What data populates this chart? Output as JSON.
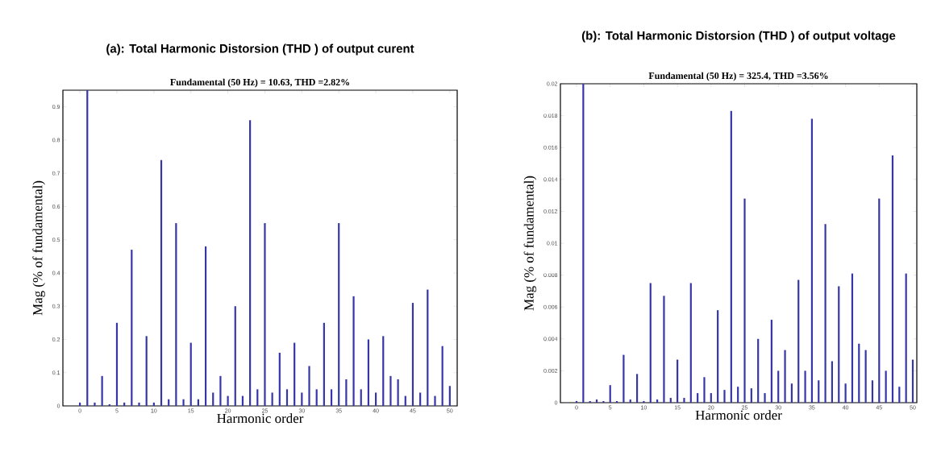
{
  "chart_data": [
    {
      "type": "bar",
      "title": "(a):  Total Harmonic Distorsion (THD ) of output curent",
      "subtitle": "Fundamental (50 Hz) = 10.63, THD =2.82%",
      "xlabel": "Harmonic order",
      "ylabel": "Mag (% of fundamental)",
      "color": "#3636a8",
      "x": [
        0,
        1,
        2,
        3,
        4,
        5,
        6,
        7,
        8,
        9,
        10,
        11,
        12,
        13,
        14,
        15,
        16,
        17,
        18,
        19,
        20,
        21,
        22,
        23,
        24,
        25,
        26,
        27,
        28,
        29,
        30,
        31,
        32,
        33,
        34,
        35,
        36,
        37,
        38,
        39,
        40,
        41,
        42,
        43,
        44,
        45,
        46,
        47,
        48,
        49,
        50
      ],
      "values": [
        0.01,
        0.95,
        0.01,
        0.09,
        0.005,
        0.25,
        0.01,
        0.47,
        0.01,
        0.21,
        0.01,
        0.74,
        0.02,
        0.55,
        0.02,
        0.19,
        0.02,
        0.48,
        0.04,
        0.09,
        0.03,
        0.3,
        0.03,
        0.86,
        0.05,
        0.55,
        0.04,
        0.16,
        0.05,
        0.19,
        0.04,
        0.12,
        0.05,
        0.25,
        0.05,
        0.55,
        0.08,
        0.33,
        0.05,
        0.2,
        0.04,
        0.21,
        0.09,
        0.08,
        0.03,
        0.31,
        0.04,
        0.35,
        0.03,
        0.18,
        0.06
      ],
      "xlim": [
        -2.3,
        51
      ],
      "ylim": [
        0,
        0.95
      ],
      "xticks": [
        0,
        5,
        10,
        15,
        20,
        25,
        30,
        35,
        40,
        45,
        50
      ],
      "yticks": [
        0,
        0.1,
        0.2,
        0.3,
        0.4,
        0.5,
        0.6,
        0.7,
        0.8,
        0.9
      ]
    },
    {
      "type": "bar",
      "title": "(b):  Total Harmonic Distorsion (THD ) of output voltage",
      "subtitle": "Fundamental (50 Hz) = 325.4, THD =3.56%",
      "xlabel": "Harmonic order",
      "ylabel": "Mag (% of fundamental)",
      "color": "#3636a8",
      "x": [
        0,
        1,
        2,
        3,
        4,
        5,
        6,
        7,
        8,
        9,
        10,
        11,
        12,
        13,
        14,
        15,
        16,
        17,
        18,
        19,
        20,
        21,
        22,
        23,
        24,
        25,
        26,
        27,
        28,
        29,
        30,
        31,
        32,
        33,
        34,
        35,
        36,
        37,
        38,
        39,
        40,
        41,
        42,
        43,
        44,
        45,
        46,
        47,
        48,
        49,
        50
      ],
      "values": [
        0.0001,
        0.02,
        0.0001,
        0.0002,
        0.0001,
        0.0011,
        0.0001,
        0.003,
        0.0002,
        0.0018,
        0.0001,
        0.0075,
        0.0002,
        0.0067,
        0.0003,
        0.0027,
        0.0003,
        0.0075,
        0.0006,
        0.0016,
        0.0006,
        0.0058,
        0.0008,
        0.0183,
        0.001,
        0.0128,
        0.0009,
        0.004,
        0.0006,
        0.0052,
        0.002,
        0.0033,
        0.0012,
        0.0077,
        0.002,
        0.0178,
        0.0014,
        0.0112,
        0.0026,
        0.0073,
        0.0012,
        0.0081,
        0.0037,
        0.0033,
        0.0014,
        0.0128,
        0.002,
        0.0155,
        0.001,
        0.0081,
        0.0027
      ],
      "xlim": [
        -2.4,
        50.6
      ],
      "ylim": [
        0,
        0.02
      ],
      "xticks": [
        0,
        5,
        10,
        15,
        20,
        25,
        30,
        35,
        40,
        45,
        50
      ],
      "yticks": [
        0,
        0.002,
        0.004,
        0.006,
        0.008,
        0.01,
        0.012,
        0.014,
        0.016,
        0.018,
        0.02
      ]
    }
  ]
}
